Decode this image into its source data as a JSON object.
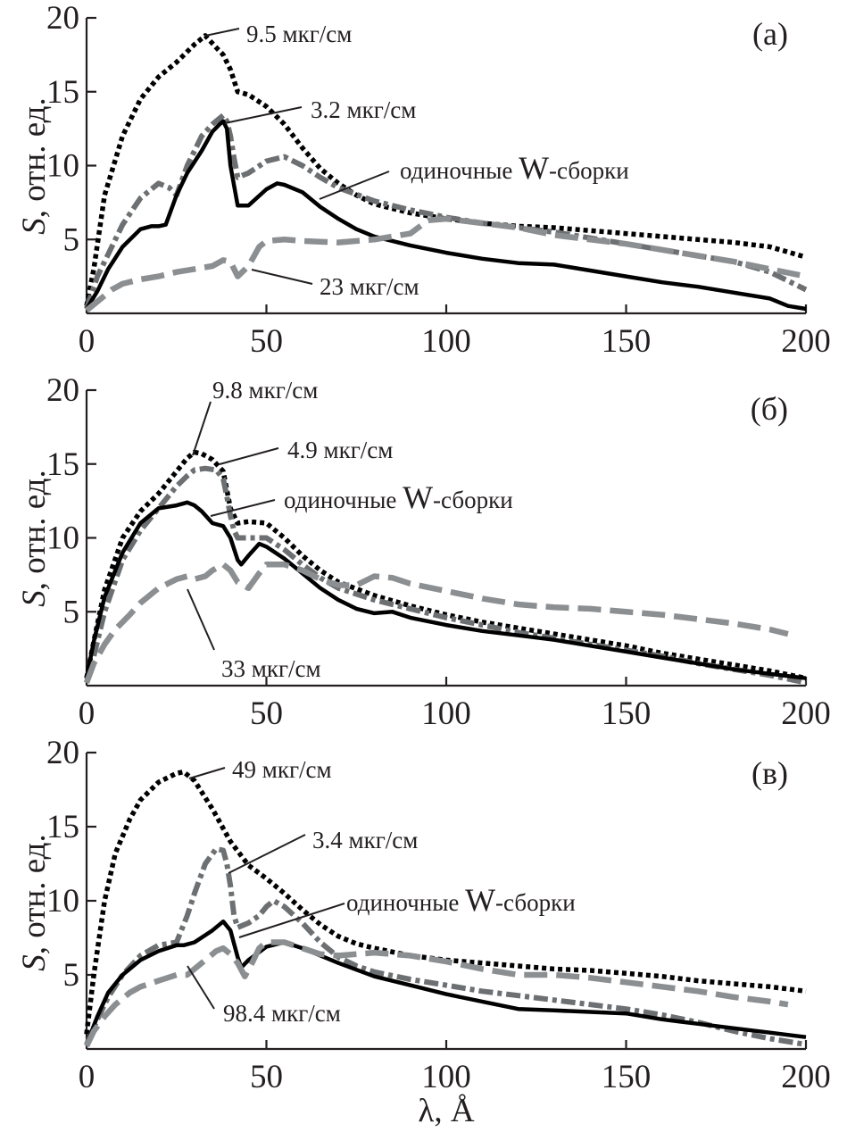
{
  "figure": {
    "xlabel": "λ, Å",
    "ylabel_italic": "S",
    "ylabel_rest": ", отн. ед.",
    "colors": {
      "black": "#000000",
      "dark_gray": "#6d7072",
      "light_gray": "#8c8f91",
      "text": "#231f20"
    }
  },
  "chart_data": [
    {
      "type": "line",
      "panel": "(a)",
      "title": "",
      "xlabel": "λ, Å",
      "ylabel": "S, отн. ед.",
      "xlim": [
        0,
        200
      ],
      "ylim": [
        0,
        20
      ],
      "xticks": [
        0,
        50,
        100,
        150,
        200
      ],
      "yticks": [
        5,
        10,
        15,
        20
      ],
      "grid": false,
      "series": [
        {
          "name": "9.5 мкг/см",
          "style": "dotted",
          "color": "black",
          "x": [
            0,
            2,
            5,
            10,
            15,
            20,
            25,
            30,
            33,
            36,
            38,
            40,
            42,
            45,
            50,
            55,
            60,
            65,
            70,
            75,
            80,
            90,
            100,
            110,
            120,
            130,
            140,
            150,
            160,
            170,
            180,
            190,
            200
          ],
          "y": [
            0.5,
            3,
            8,
            12,
            14.5,
            16,
            17,
            18.2,
            18.8,
            18,
            17.5,
            16.5,
            15,
            14.8,
            14,
            12.8,
            11.2,
            9.8,
            8.8,
            8,
            7.4,
            6.8,
            6.4,
            6.1,
            5.9,
            5.8,
            5.6,
            5.4,
            5.2,
            5,
            4.8,
            4.5,
            3.8
          ]
        },
        {
          "name": "3.2 мкг/см",
          "style": "dash-dot",
          "color": "dark_gray",
          "x": [
            0,
            3,
            6,
            10,
            15,
            20,
            23,
            25,
            28,
            32,
            35,
            38,
            39,
            40,
            41,
            42,
            45,
            50,
            55,
            60,
            65,
            70,
            80,
            90,
            100,
            110,
            120,
            130,
            140,
            150,
            160,
            170,
            180,
            190,
            200
          ],
          "y": [
            0.3,
            2.5,
            4,
            6,
            7.8,
            8.8,
            8.5,
            8,
            10,
            12,
            12.8,
            13.4,
            13,
            12,
            10.5,
            9.2,
            9.5,
            10.3,
            10.6,
            10,
            9.2,
            8.5,
            7.6,
            7,
            6.5,
            6.1,
            5.8,
            5.5,
            5.1,
            4.7,
            4.3,
            3.9,
            3.5,
            2.8,
            1.6
          ]
        },
        {
          "name": "одиночные W-сборки",
          "style": "solid",
          "color": "black",
          "x": [
            0,
            3,
            6,
            10,
            15,
            18,
            20,
            22,
            25,
            28,
            32,
            35,
            37,
            38,
            39,
            40,
            42,
            45,
            50,
            53,
            55,
            60,
            65,
            70,
            75,
            80,
            90,
            100,
            110,
            120,
            130,
            140,
            150,
            160,
            170,
            180,
            190,
            195,
            200
          ],
          "y": [
            0.3,
            1.5,
            3,
            4.5,
            5.7,
            5.9,
            5.9,
            6,
            8,
            9.5,
            11,
            12.3,
            12.8,
            13,
            12.5,
            10,
            7.3,
            7.3,
            8.4,
            8.8,
            8.7,
            8.2,
            7.2,
            6.4,
            5.7,
            5.2,
            4.6,
            4.1,
            3.7,
            3.4,
            3.3,
            2.9,
            2.5,
            2.1,
            1.8,
            1.4,
            1,
            0.5,
            0.3
          ]
        },
        {
          "name": "23 мкг/см",
          "style": "dashed",
          "color": "light_gray",
          "x": [
            0,
            3,
            7,
            10,
            15,
            20,
            25,
            30,
            35,
            38,
            40,
            42,
            45,
            48,
            50,
            55,
            60,
            70,
            80,
            90,
            95,
            100,
            110,
            120,
            130,
            140,
            150,
            160,
            170,
            180,
            190,
            200
          ],
          "y": [
            0.2,
            0.8,
            1.6,
            2,
            2.3,
            2.5,
            2.8,
            3,
            3.2,
            3.6,
            3.5,
            2.5,
            3.2,
            4.5,
            4.9,
            5,
            4.9,
            4.8,
            5,
            5.4,
            6.3,
            6.4,
            6.1,
            5.8,
            5.3,
            5,
            4.7,
            4.3,
            3.9,
            3.5,
            3,
            2.5
          ]
        }
      ],
      "annotations": [
        "9.5 мкг/см",
        "3.2 мкг/см",
        "одиночные W-сборки",
        "23 мкг/см"
      ]
    },
    {
      "type": "line",
      "panel": "(б)",
      "title": "",
      "xlabel": "λ, Å",
      "ylabel": "S, отн. ед.",
      "xlim": [
        0,
        200
      ],
      "ylim": [
        0,
        20
      ],
      "xticks": [
        0,
        50,
        100,
        150,
        200
      ],
      "yticks": [
        5,
        10,
        15,
        20
      ],
      "grid": false,
      "series": [
        {
          "name": "9.8 мкг/см",
          "style": "dotted",
          "color": "black",
          "x": [
            0,
            2,
            5,
            10,
            15,
            20,
            25,
            28,
            30,
            32,
            35,
            38,
            40,
            42,
            45,
            50,
            55,
            60,
            65,
            70,
            80,
            90,
            100,
            110,
            120,
            130,
            140,
            150,
            160,
            170,
            180,
            190,
            200
          ],
          "y": [
            0.5,
            3,
            6.5,
            10,
            11.8,
            13,
            14.5,
            15.4,
            15.8,
            15.7,
            15.3,
            14.5,
            12,
            11,
            11.1,
            11,
            10,
            8.8,
            7.8,
            7,
            6.1,
            5.4,
            4.8,
            4.3,
            3.9,
            3.5,
            3.1,
            2.7,
            2.2,
            1.8,
            1.4,
            1,
            0.5
          ]
        },
        {
          "name": "4.9 мкг/см",
          "style": "dash-dot",
          "color": "dark_gray",
          "x": [
            0,
            2,
            5,
            10,
            15,
            20,
            25,
            28,
            30,
            33,
            36,
            38,
            39,
            40,
            41,
            42,
            45,
            50,
            55,
            60,
            65,
            70,
            80,
            90,
            100,
            110,
            120,
            130,
            140,
            150,
            160,
            170,
            180,
            190,
            200
          ],
          "y": [
            0.2,
            2,
            5,
            8.5,
            10.5,
            12,
            13.5,
            14.2,
            14.6,
            14.7,
            14.6,
            14,
            12.8,
            11.5,
            10.5,
            10,
            10,
            10,
            9.2,
            8.2,
            7.3,
            6.6,
            5.8,
            5.2,
            4.6,
            4.1,
            3.6,
            3.2,
            2.8,
            2.4,
            2,
            1.5,
            1.1,
            0.7,
            0.2
          ]
        },
        {
          "name": "одиночные W-сборки",
          "style": "solid",
          "color": "black",
          "x": [
            0,
            2,
            5,
            10,
            15,
            20,
            25,
            28,
            30,
            32,
            35,
            38,
            40,
            42,
            43,
            45,
            48,
            50,
            55,
            60,
            65,
            70,
            75,
            80,
            85,
            90,
            100,
            110,
            120,
            130,
            140,
            150,
            160,
            170,
            180,
            190,
            200
          ],
          "y": [
            0.5,
            3,
            6,
            9,
            11,
            12,
            12.2,
            12.4,
            12.2,
            11.8,
            11,
            10.8,
            10,
            8.5,
            8.2,
            8.8,
            9.6,
            9.4,
            8.6,
            7.6,
            6.6,
            5.8,
            5.2,
            4.9,
            5,
            4.6,
            4.1,
            3.7,
            3.4,
            3.1,
            2.7,
            2.3,
            1.9,
            1.5,
            1.1,
            0.8,
            0.5
          ]
        },
        {
          "name": "33 мкг/см",
          "style": "dashed",
          "color": "light_gray",
          "x": [
            0,
            2,
            5,
            8,
            12,
            15,
            20,
            25,
            28,
            30,
            33,
            35,
            38,
            40,
            42,
            45,
            48,
            50,
            55,
            60,
            65,
            70,
            75,
            80,
            85,
            90,
            100,
            110,
            120,
            130,
            140,
            150,
            160,
            170,
            180,
            190,
            195
          ],
          "y": [
            0.2,
            1.5,
            2.8,
            3.8,
            4.8,
            5.6,
            6.6,
            7.2,
            7.4,
            7.2,
            7.4,
            7.8,
            8.2,
            7.8,
            7,
            6.6,
            7.6,
            8.2,
            8.2,
            7.8,
            7.2,
            6.8,
            6.8,
            7.4,
            7.3,
            6.9,
            6.4,
            5.9,
            5.5,
            5.3,
            5.2,
            5,
            4.8,
            4.5,
            4.2,
            3.8,
            3.5
          ]
        }
      ],
      "annotations": [
        "9.8 мкг/см",
        "4.9 мкг/см",
        "одиночные W-сборки",
        "33 мкг/см"
      ]
    },
    {
      "type": "line",
      "panel": "(в)",
      "title": "",
      "xlabel": "λ, Å",
      "ylabel": "S, отн. ед.",
      "xlim": [
        0,
        200
      ],
      "ylim": [
        0,
        20
      ],
      "xticks": [
        0,
        50,
        100,
        150,
        200
      ],
      "yticks": [
        5,
        10,
        15,
        20
      ],
      "grid": false,
      "series": [
        {
          "name": "49 мкг/см",
          "style": "dotted",
          "color": "black",
          "x": [
            0,
            2,
            5,
            8,
            12,
            15,
            20,
            25,
            27,
            30,
            35,
            40,
            45,
            50,
            55,
            60,
            65,
            70,
            75,
            80,
            90,
            100,
            110,
            120,
            130,
            140,
            150,
            160,
            170,
            180,
            190,
            200
          ],
          "y": [
            1,
            5,
            10,
            13.2,
            15.5,
            16.8,
            18,
            18.6,
            18.7,
            18.1,
            16.2,
            14,
            12.4,
            11.5,
            10.5,
            9.4,
            8.4,
            7.6,
            7.1,
            6.8,
            6.3,
            6,
            5.8,
            5.6,
            5.4,
            5.3,
            5.1,
            4.9,
            4.6,
            4.4,
            4.2,
            3.9
          ]
        },
        {
          "name": "3.4 мкг/см",
          "style": "dash-dot",
          "color": "dark_gray",
          "x": [
            0,
            3,
            6,
            10,
            15,
            20,
            25,
            28,
            30,
            33,
            36,
            38,
            39,
            40,
            41,
            42,
            45,
            48,
            50,
            52,
            55,
            60,
            65,
            70,
            75,
            80,
            90,
            100,
            110,
            120,
            130,
            140,
            150,
            160,
            170,
            180,
            190,
            200
          ],
          "y": [
            0.3,
            2,
            3.5,
            5,
            6.3,
            7,
            7.2,
            9,
            10.5,
            12.5,
            13.5,
            13.4,
            12.5,
            11,
            9,
            8.2,
            8.5,
            9,
            9.6,
            10,
            9.6,
            8.5,
            7.2,
            6.2,
            5.6,
            5.2,
            4.7,
            4.3,
            3.9,
            3.6,
            3.3,
            3,
            2.7,
            2.3,
            1.8,
            1.2,
            0.7,
            0.3
          ]
        },
        {
          "name": "одиночные W-сборки",
          "style": "solid",
          "color": "black",
          "x": [
            0,
            3,
            6,
            10,
            15,
            20,
            25,
            27,
            30,
            35,
            38,
            40,
            42,
            43,
            45,
            50,
            55,
            60,
            70,
            80,
            90,
            100,
            110,
            120,
            130,
            140,
            150,
            160,
            170,
            180,
            190,
            200
          ],
          "y": [
            0.3,
            2.2,
            3.8,
            5,
            6,
            6.6,
            7,
            7,
            7.2,
            8,
            8.6,
            8,
            6.2,
            5.5,
            6,
            6.9,
            7.2,
            6.8,
            5.8,
            4.9,
            4.3,
            3.7,
            3.2,
            2.7,
            2.6,
            2.5,
            2.4,
            2,
            1.7,
            1.4,
            1.1,
            0.8
          ]
        },
        {
          "name": "98.4 мкг/см",
          "style": "dashed",
          "color": "light_gray",
          "x": [
            0,
            2,
            5,
            8,
            12,
            15,
            20,
            25,
            28,
            30,
            33,
            36,
            38,
            40,
            42,
            44,
            46,
            48,
            50,
            55,
            60,
            65,
            70,
            75,
            80,
            90,
            100,
            110,
            120,
            130,
            140,
            150,
            160,
            170,
            180,
            190,
            195
          ],
          "y": [
            0.2,
            1.2,
            2.2,
            3,
            3.8,
            4.2,
            4.6,
            5,
            5,
            5.4,
            6,
            6.6,
            6.8,
            6.4,
            5.8,
            4.9,
            5.8,
            6.8,
            7.2,
            7.2,
            6.8,
            6.4,
            6.3,
            6.4,
            6.5,
            6.3,
            5.9,
            5.4,
            5,
            5,
            4.8,
            4.5,
            4.2,
            3.9,
            3.5,
            3.2,
            3
          ]
        }
      ],
      "annotations": [
        "49 мкг/см",
        "3.4 мкг/см",
        "одиночные W-сборки",
        "98.4 мкг/см"
      ]
    }
  ],
  "panels": [
    {
      "tag": "(a)",
      "labels": {
        "l0": "9.5 мкг/см",
        "l1": "3.2 мкг/см",
        "l2_pre": "одиночные ",
        "l2_w": "W",
        "l2_post": "-сборки",
        "l3": "23 мкг/см"
      }
    },
    {
      "tag": "(б)",
      "labels": {
        "l0": "9.8 мкг/см",
        "l1": "4.9 мкг/см",
        "l2_pre": "одиночные ",
        "l2_w": "W",
        "l2_post": "-сборки",
        "l3": "33 мкг/см"
      }
    },
    {
      "tag": "(в)",
      "labels": {
        "l0": "49 мкг/см",
        "l1": "3.4 мкг/см",
        "l2_pre": "одиночные ",
        "l2_w": "W",
        "l2_post": "-сборки",
        "l3": "98.4 мкг/см"
      }
    }
  ],
  "ticks": {
    "x": [
      "0",
      "50",
      "100",
      "150",
      "200"
    ],
    "y": [
      "5",
      "10",
      "15",
      "20"
    ]
  }
}
